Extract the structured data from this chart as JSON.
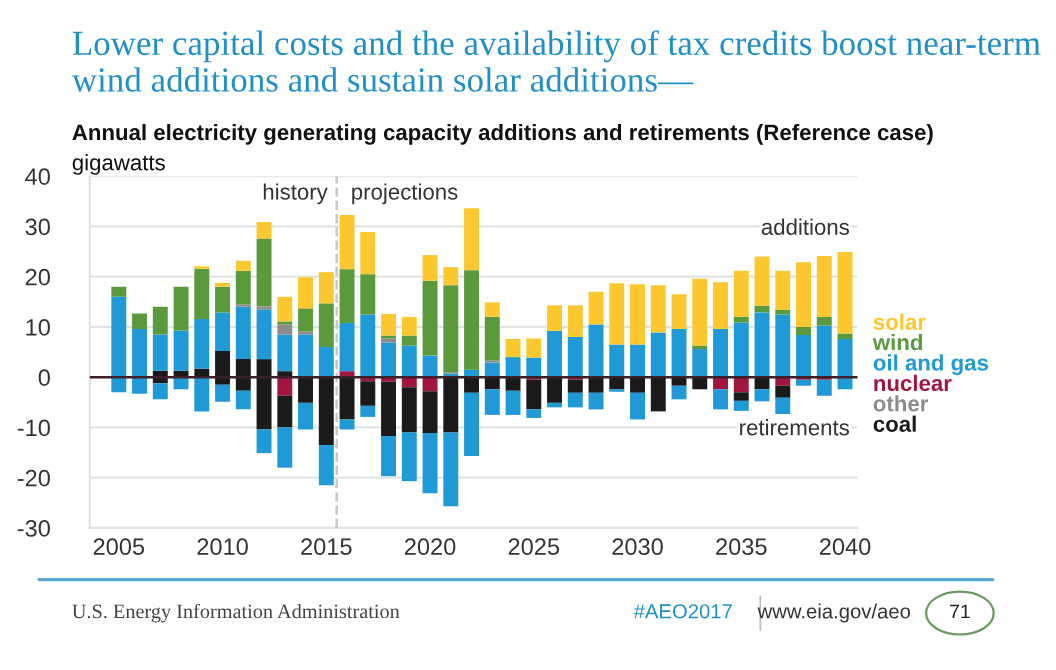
{
  "chart_data": {
    "type": "bar",
    "stacked": true,
    "title": "Lower capital costs and the availability of tax credits boost near-term wind additions and sustain solar additions—",
    "subtitle": "Annual electricity generating capacity additions and retirements (Reference case)",
    "ylabel": "gigawatts",
    "x": [
      2005,
      2006,
      2007,
      2008,
      2009,
      2010,
      2011,
      2012,
      2013,
      2014,
      2015,
      2016,
      2017,
      2018,
      2019,
      2020,
      2021,
      2022,
      2023,
      2024,
      2025,
      2026,
      2027,
      2028,
      2029,
      2030,
      2031,
      2032,
      2033,
      2034,
      2035,
      2036,
      2037,
      2038,
      2039,
      2040
    ],
    "series": [
      {
        "name": "nuclear",
        "color": "#a1163f",
        "values": [
          null,
          null,
          null,
          null,
          null,
          null,
          null,
          null,
          null,
          null,
          null,
          1.2,
          null,
          null,
          null,
          null,
          null,
          null,
          null,
          null,
          null,
          null,
          null,
          null,
          null,
          null,
          null,
          null,
          null,
          null,
          null,
          null,
          null,
          null,
          null,
          null
        ]
      },
      {
        "name": "coal",
        "color": "#1a1a1a",
        "values": [
          null,
          null,
          1.3,
          1.3,
          1.7,
          5.2,
          3.6,
          3.6,
          1.2,
          null,
          null,
          null,
          null,
          null,
          null,
          null,
          null,
          null,
          null,
          null,
          null,
          null,
          null,
          null,
          null,
          null,
          null,
          null,
          null,
          null,
          null,
          null,
          null,
          null,
          null,
          null
        ]
      },
      {
        "name": "oil and gas",
        "color": "#1f9ad6",
        "values": [
          16,
          9.6,
          7.2,
          8,
          9.9,
          7.7,
          10.4,
          9.9,
          7.3,
          8.5,
          6,
          9.6,
          12.5,
          6.9,
          6.3,
          4.3,
          0.7,
          1.5,
          2.9,
          4,
          3.9,
          9.2,
          8,
          10.5,
          6.5,
          6.5,
          8.9,
          9.6,
          5.6,
          9.6,
          10.9,
          12.9,
          12.5,
          8.4,
          10.3,
          7.6
        ]
      },
      {
        "name": "other",
        "color": "#8c8c8c",
        "values": [
          null,
          null,
          null,
          null,
          null,
          null,
          0.5,
          0.6,
          2,
          0.6,
          null,
          null,
          null,
          0.8,
          null,
          null,
          0.3,
          null,
          0.4,
          null,
          null,
          null,
          null,
          null,
          null,
          null,
          null,
          null,
          null,
          null,
          null,
          null,
          null,
          null,
          null,
          null
        ]
      },
      {
        "name": "wind",
        "color": "#5a9a3c",
        "values": [
          2,
          3.1,
          5.5,
          8.7,
          10,
          5.1,
          6.7,
          13.5,
          0.6,
          4.6,
          8.7,
          10.7,
          8,
          0.6,
          2,
          14.9,
          17.3,
          19.8,
          8.7,
          null,
          null,
          null,
          null,
          null,
          null,
          null,
          null,
          null,
          0.7,
          null,
          1.1,
          1.3,
          0.9,
          1.6,
          1.7,
          1.1
        ]
      },
      {
        "name": "solar",
        "color": "#fdc82f",
        "values": [
          null,
          null,
          null,
          null,
          0.5,
          0.8,
          2,
          3.3,
          4.9,
          6.2,
          6.2,
          10.8,
          8.4,
          4.3,
          3.7,
          5.1,
          3.6,
          12.3,
          2.9,
          3.6,
          3.8,
          5.1,
          6.3,
          6.5,
          12.2,
          12,
          9.4,
          6.9,
          13.3,
          9.3,
          9.2,
          9.8,
          7.8,
          12.9,
          12.1,
          16.2
        ]
      },
      {
        "color": "#a1163f",
        "values": [
          null,
          null,
          null,
          null,
          null,
          null,
          null,
          null,
          -3.7,
          null,
          null,
          null,
          -0.8,
          -0.9,
          -2,
          -2.8,
          null,
          null,
          null,
          null,
          -0.5,
          null,
          -0.5,
          null,
          null,
          null,
          null,
          null,
          null,
          -2.4,
          -3,
          null,
          -1.7,
          -0.5,
          -0.5,
          null
        ]
      },
      {
        "color": "#1a1a1a",
        "values": [
          null,
          null,
          -1.2,
          null,
          null,
          -1.5,
          -2.7,
          -10.4,
          -6.3,
          -5.1,
          -13.5,
          -8.4,
          -4.9,
          -10.8,
          -9,
          -8.3,
          -11,
          -3.1,
          -2.4,
          -2.7,
          -5.9,
          -5.1,
          -2.6,
          -3.1,
          -2.4,
          -3.1,
          -6.8,
          -1.7,
          -2.4,
          null,
          -1.7,
          -2.4,
          -2.4,
          null,
          null,
          null
        ]
      },
      {
        "color": "#1f9ad6",
        "values": [
          -3,
          -3.3,
          -3.2,
          -2.4,
          -6.8,
          -3.4,
          -3.7,
          -4.7,
          -8,
          -5.3,
          -8,
          -2,
          -2.2,
          -8,
          -9.7,
          -12,
          -14.7,
          -12.6,
          -5.1,
          -4.8,
          -1.7,
          -0.9,
          -2.9,
          -3.3,
          -0.5,
          -5.3,
          null,
          -2.7,
          null,
          -4,
          -2,
          -2.4,
          -3.2,
          -1.2,
          -3.2,
          -2.4
        ]
      }
    ],
    "xlim": [
      2003.6,
      2040.6
    ],
    "xticks": [
      2005,
      2010,
      2015,
      2020,
      2025,
      2030,
      2035,
      2040
    ],
    "ylim": [
      -30,
      40
    ],
    "yticks": [
      -30,
      -20,
      -10,
      0,
      10,
      20,
      30,
      40
    ],
    "grid": "y",
    "legend": "right",
    "ref_lines": [
      {
        "axis": "x",
        "value": 2015.5,
        "color": "#c8c8c8",
        "line_style": "dashed"
      },
      {
        "axis": "y",
        "value": 0,
        "color": "#3b1f2b",
        "line_style": "solid"
      }
    ],
    "annotations": [
      "history",
      "projections",
      "additions",
      "retirements",
      "U.S. Energy Information Administration",
      "#AEO2017",
      "www.eia.gov/aeo",
      "71"
    ]
  }
}
